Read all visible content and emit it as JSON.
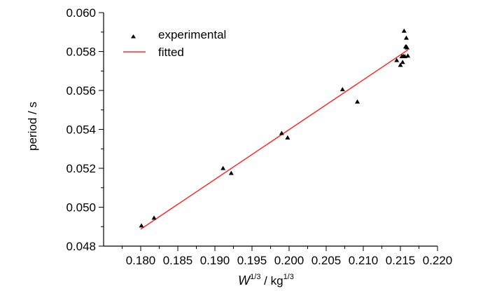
{
  "chart_data": {
    "type": "scatter",
    "title": "",
    "xlabel": {
      "base": "W",
      "sup": "1/3",
      "mid": " / kg",
      "sup2": "1/3"
    },
    "ylabel": "period / s",
    "xlim": [
      0.175,
      0.22
    ],
    "ylim": [
      0.048,
      0.06
    ],
    "x_ticks": [
      "0.180",
      "0.185",
      "0.190",
      "0.195",
      "0.200",
      "0.205",
      "0.210",
      "0.215",
      "0.220"
    ],
    "y_ticks": [
      "0.048",
      "0.050",
      "0.052",
      "0.054",
      "0.056",
      "0.058",
      "0.060"
    ],
    "grid": false,
    "legend_position": "top-left",
    "series": [
      {
        "name": "experimental",
        "marker": "triangle",
        "color": "#000000",
        "x": [
          0.1801,
          0.1818,
          0.1911,
          0.1922,
          0.199,
          0.1998,
          0.2072,
          0.2092,
          0.2145,
          0.215,
          0.2152,
          0.2153,
          0.2154,
          0.2155,
          0.2156,
          0.2157,
          0.2158,
          0.2159,
          0.216,
          0.2158
        ],
        "y": [
          0.04905,
          0.04945,
          0.052,
          0.05175,
          0.0538,
          0.05357,
          0.05605,
          0.05542,
          0.05755,
          0.0573,
          0.05775,
          0.05745,
          0.05776,
          0.05906,
          0.05775,
          0.05825,
          0.0587,
          0.0582,
          0.05778,
          0.05825
        ]
      },
      {
        "name": "fitted",
        "type": "line",
        "color": "#ff2a2a",
        "x": [
          0.18,
          0.216
        ],
        "y": [
          0.04887,
          0.05808
        ]
      }
    ]
  }
}
